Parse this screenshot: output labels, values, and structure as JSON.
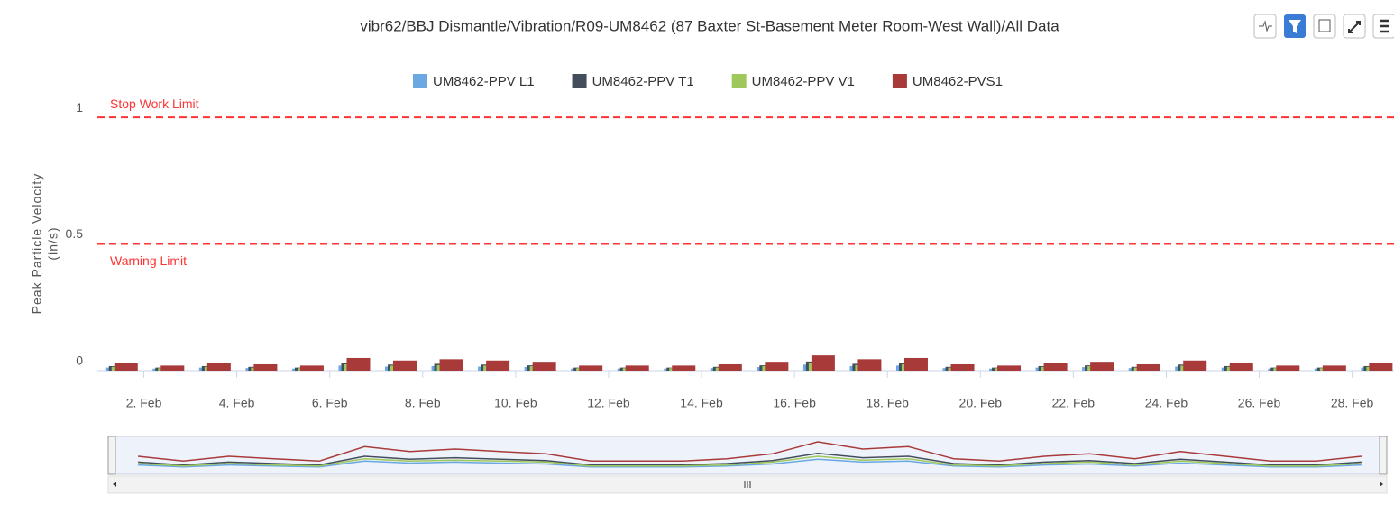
{
  "chart_data": {
    "type": "bar",
    "title": "vibr62/BBJ Dismantle/Vibration/R09-UM8462 (87 Baxter St-Basement Meter Room-West Wall)/All Data",
    "y_label": [
      "Peak Particle Velocity",
      "(in/s)"
    ],
    "x": [
      1.5,
      2.5,
      3.5,
      4.5,
      5.5,
      6.5,
      7.5,
      8.5,
      9.5,
      10.5,
      11.5,
      12.5,
      13.5,
      14.5,
      15.5,
      16.5,
      17.5,
      18.5,
      19.5,
      20.5,
      21.5,
      22.5,
      23.5,
      24.5,
      25.5,
      26.5,
      27.5,
      28.5
    ],
    "series": [
      {
        "name": "UM8462-PPV L1",
        "color": "#6ba7e0",
        "values": [
          0.012,
          0.008,
          0.012,
          0.01,
          0.008,
          0.02,
          0.016,
          0.018,
          0.016,
          0.014,
          0.008,
          0.008,
          0.008,
          0.01,
          0.014,
          0.024,
          0.018,
          0.02,
          0.01,
          0.008,
          0.012,
          0.014,
          0.01,
          0.016,
          0.012,
          0.008,
          0.008,
          0.012
        ]
      },
      {
        "name": "UM8462-PPV T1",
        "color": "#434d5c",
        "values": [
          0.018,
          0.012,
          0.018,
          0.015,
          0.012,
          0.03,
          0.024,
          0.027,
          0.024,
          0.021,
          0.012,
          0.012,
          0.012,
          0.015,
          0.021,
          0.036,
          0.027,
          0.03,
          0.015,
          0.012,
          0.018,
          0.021,
          0.015,
          0.024,
          0.018,
          0.012,
          0.012,
          0.018
        ]
      },
      {
        "name": "UM8462-PPV V1",
        "color": "#9fc85c",
        "values": [
          0.015,
          0.01,
          0.015,
          0.012,
          0.01,
          0.025,
          0.02,
          0.022,
          0.02,
          0.018,
          0.01,
          0.01,
          0.01,
          0.012,
          0.018,
          0.03,
          0.022,
          0.025,
          0.012,
          0.01,
          0.015,
          0.018,
          0.012,
          0.02,
          0.015,
          0.01,
          0.01,
          0.015
        ]
      },
      {
        "name": "UM8462-PVS1",
        "color": "#a83a3a",
        "values": [
          0.03,
          0.02,
          0.03,
          0.025,
          0.02,
          0.05,
          0.04,
          0.045,
          0.04,
          0.035,
          0.02,
          0.02,
          0.02,
          0.025,
          0.035,
          0.06,
          0.045,
          0.05,
          0.025,
          0.02,
          0.03,
          0.035,
          0.025,
          0.04,
          0.03,
          0.02,
          0.02,
          0.03
        ]
      }
    ],
    "xlim": [
      1,
      28.9
    ],
    "xticks": [
      {
        "value": 2,
        "label": "2. Feb"
      },
      {
        "value": 4,
        "label": "4. Feb"
      },
      {
        "value": 6,
        "label": "6. Feb"
      },
      {
        "value": 8,
        "label": "8. Feb"
      },
      {
        "value": 10,
        "label": "10. Feb"
      },
      {
        "value": 12,
        "label": "12. Feb"
      },
      {
        "value": 14,
        "label": "14. Feb"
      },
      {
        "value": 16,
        "label": "16. Feb"
      },
      {
        "value": 18,
        "label": "18. Feb"
      },
      {
        "value": 20,
        "label": "20. Feb"
      },
      {
        "value": 22,
        "label": "22. Feb"
      },
      {
        "value": 24,
        "label": "24. Feb"
      },
      {
        "value": 26,
        "label": "26. Feb"
      },
      {
        "value": 28,
        "label": "28. Feb"
      }
    ],
    "ylim": [
      0,
      1.1
    ],
    "yticks": [
      0,
      0.5,
      1
    ],
    "plot_lines": [
      {
        "value": 1,
        "label": "Stop Work Limit",
        "color": "#ff3333"
      },
      {
        "value": 0.5,
        "label": "Warning Limit",
        "color": "#ff3333"
      }
    ]
  }
}
